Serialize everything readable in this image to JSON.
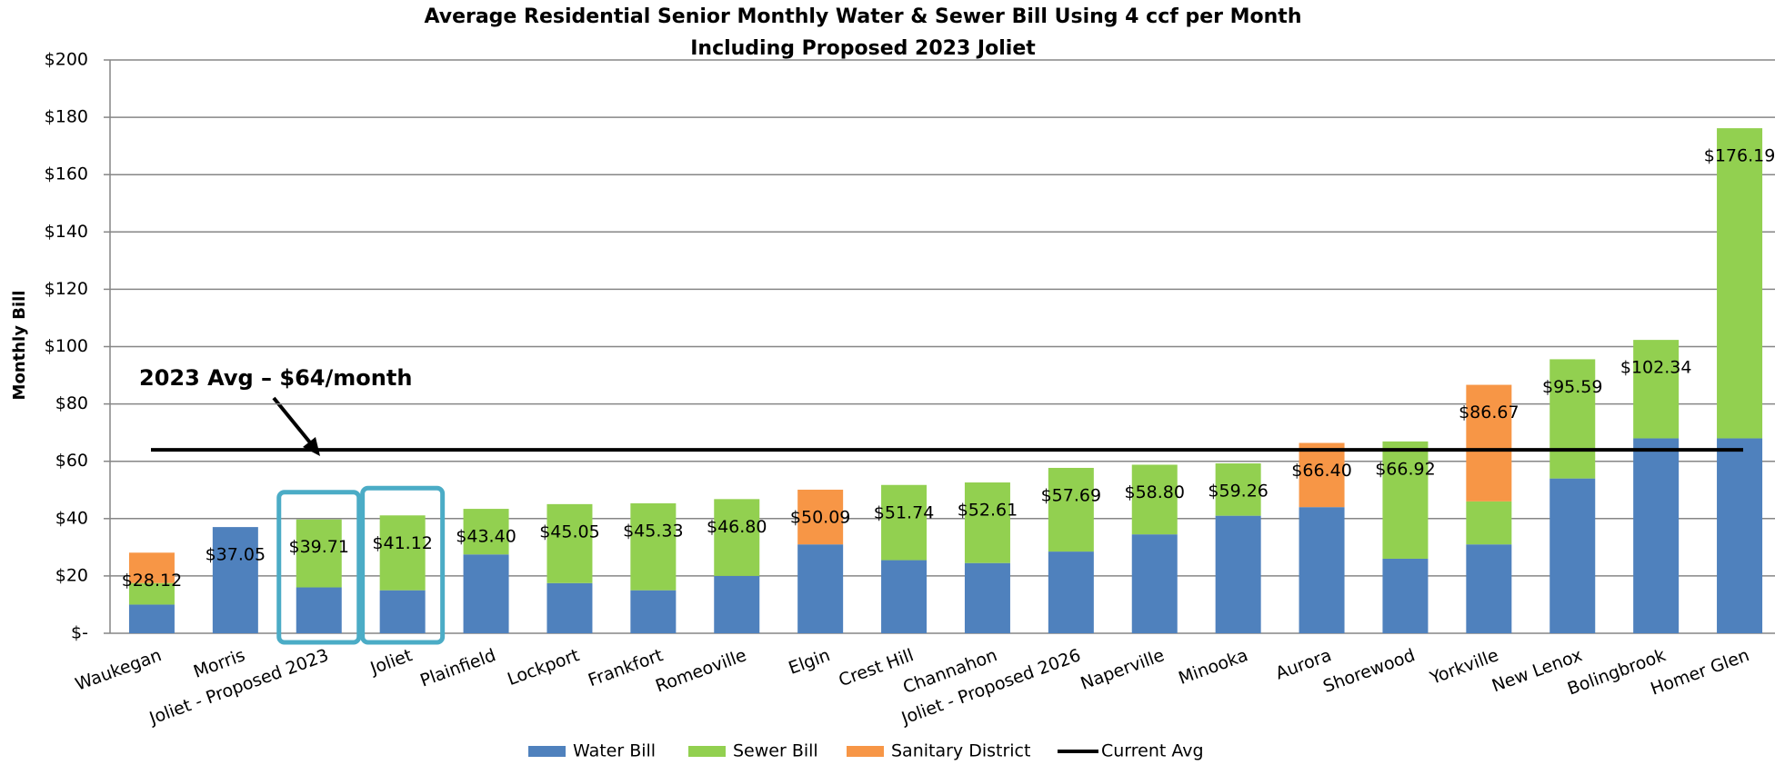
{
  "chart_data": {
    "type": "stacked_bar",
    "title": "Average Residential Senior Monthly Water & Sewer Bill Using 4 ccf per Month",
    "subtitle": "Including Proposed 2023 Joliet",
    "y_label": "Monthly Bill",
    "annotation": "2023 Avg – $64/month",
    "categories": [
      "Waukegan",
      "Morris",
      "Joliet - Proposed 2023",
      "Joliet",
      "Plainfield",
      "Lockport",
      "Frankfort",
      "Romeoville",
      "Elgin",
      "Crest Hill",
      "Channahon",
      "Joliet - Proposed 2026",
      "Naperville",
      "Minooka",
      "Aurora",
      "Shorewood",
      "Yorkville",
      "New Lenox",
      "Bolingbrook",
      "Homer Glen"
    ],
    "series": [
      {
        "name": "Water Bill",
        "color": "#4f81bd",
        "values": [
          10,
          37.05,
          16,
          15,
          27.5,
          17.5,
          15,
          20,
          31,
          25.5,
          24.5,
          28.5,
          34.5,
          41,
          44,
          26,
          31,
          54,
          68,
          68
        ]
      },
      {
        "name": "Sewer Bill",
        "color": "#92d050",
        "values": [
          7.5,
          null,
          23.71,
          26.12,
          15.9,
          27.55,
          30.33,
          26.8,
          null,
          26.24,
          28.11,
          29.19,
          24.3,
          18.26,
          null,
          40.92,
          15,
          41.59,
          34.34,
          108.19
        ]
      },
      {
        "name": "Sanitary District",
        "color": "#f79646",
        "values": [
          10.62,
          null,
          null,
          null,
          null,
          null,
          null,
          null,
          19.09,
          null,
          null,
          null,
          null,
          null,
          22.4,
          null,
          40.67,
          null,
          null,
          null
        ]
      }
    ],
    "totals": [
      28.12,
      37.05,
      39.71,
      41.12,
      43.4,
      45.05,
      45.33,
      46.8,
      50.09,
      51.74,
      52.61,
      57.69,
      58.8,
      59.26,
      66.4,
      66.92,
      86.67,
      95.59,
      102.34,
      176.19
    ],
    "total_labels": [
      "$28.12",
      "$37.05",
      "$39.71",
      "$41.12",
      "$43.40",
      "$45.05",
      "$45.33",
      "$46.80",
      "$50.09",
      "$51.74",
      "$52.61",
      "$57.69",
      "$58.80",
      "$59.26",
      "$66.40",
      "$66.92",
      "$86.67",
      "$95.59",
      "$102.34",
      "$176.19"
    ],
    "avg_line": {
      "name": "Current Avg",
      "value": 64,
      "color": "#000000"
    },
    "highlighted_categories": [
      2,
      3
    ],
    "highlight_color": "#4bacc6",
    "ylim": [
      0,
      200
    ],
    "yticks": [
      {
        "value": 0,
        "label": "$-"
      },
      {
        "value": 20,
        "label": "$20"
      },
      {
        "value": 40,
        "label": "$40"
      },
      {
        "value": 60,
        "label": "$60"
      },
      {
        "value": 80,
        "label": "$80"
      },
      {
        "value": 100,
        "label": "$100"
      },
      {
        "value": 120,
        "label": "$120"
      },
      {
        "value": 140,
        "label": "$140"
      },
      {
        "value": 160,
        "label": "$160"
      },
      {
        "value": 180,
        "label": "$180"
      },
      {
        "value": 200,
        "label": "$200"
      }
    ],
    "grid": true,
    "legend": "bottom"
  }
}
